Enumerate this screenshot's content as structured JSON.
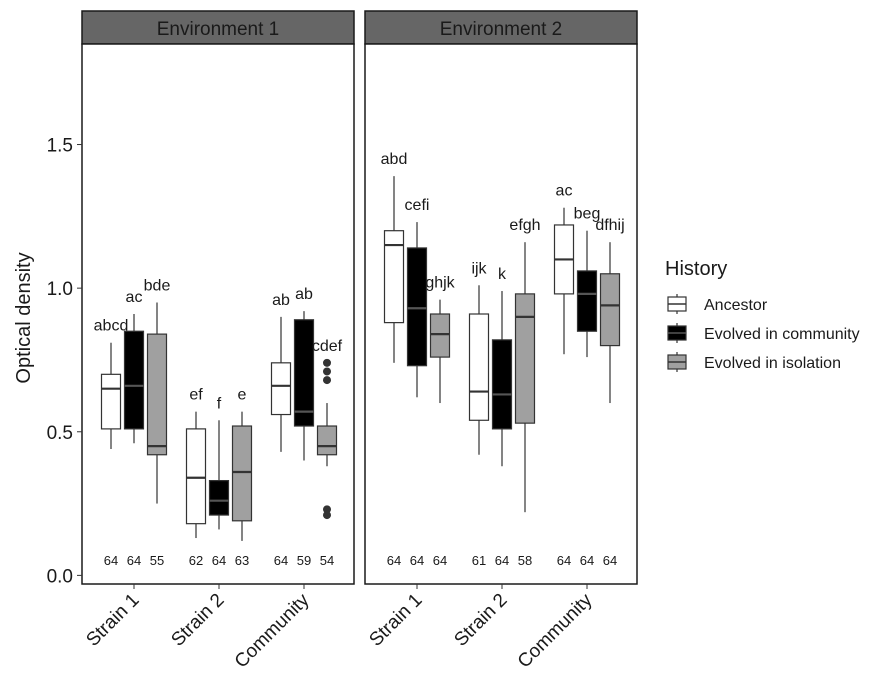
{
  "chart_data": {
    "type": "boxplot",
    "ylabel": "Optical density",
    "ylim": [
      -0.03,
      1.85
    ],
    "yticks": [
      0.0,
      0.5,
      1.0,
      1.5
    ],
    "ytick_labels": [
      "0.0",
      "0.5",
      "1.0",
      "1.5"
    ],
    "categories": [
      "Strain 1",
      "Strain 2",
      "Community"
    ],
    "legend": {
      "title": "History",
      "position": "right",
      "entries": [
        {
          "label": "Ancestor",
          "color": "#ffffff"
        },
        {
          "label": "Evolved in community",
          "color": "#000000"
        },
        {
          "label": "Evolved in isolation",
          "color": "#a0a0a0"
        }
      ]
    },
    "panels": [
      {
        "title": "Environment 1",
        "groups": [
          {
            "category": "Strain 1",
            "boxes": [
              {
                "series": "Ancestor",
                "lower": 0.44,
                "q1": 0.51,
                "median": 0.65,
                "q3": 0.7,
                "upper": 0.81,
                "outliers": [],
                "label": "abcd",
                "n": "64"
              },
              {
                "series": "Evolved in community",
                "lower": 0.46,
                "q1": 0.51,
                "median": 0.66,
                "q3": 0.85,
                "upper": 0.91,
                "outliers": [],
                "label": "ac",
                "n": "64"
              },
              {
                "series": "Evolved in isolation",
                "lower": 0.25,
                "q1": 0.42,
                "median": 0.45,
                "q3": 0.84,
                "upper": 0.95,
                "outliers": [],
                "label": "bde",
                "n": "55"
              }
            ]
          },
          {
            "category": "Strain 2",
            "boxes": [
              {
                "series": "Ancestor",
                "lower": 0.13,
                "q1": 0.18,
                "median": 0.34,
                "q3": 0.51,
                "upper": 0.57,
                "outliers": [],
                "label": "ef",
                "n": "62"
              },
              {
                "series": "Evolved in community",
                "lower": 0.16,
                "q1": 0.21,
                "median": 0.26,
                "q3": 0.33,
                "upper": 0.54,
                "outliers": [],
                "label": "f",
                "n": "64"
              },
              {
                "series": "Evolved in isolation",
                "lower": 0.12,
                "q1": 0.19,
                "median": 0.36,
                "q3": 0.52,
                "upper": 0.57,
                "outliers": [],
                "label": "e",
                "n": "63"
              }
            ]
          },
          {
            "category": "Community",
            "boxes": [
              {
                "series": "Ancestor",
                "lower": 0.43,
                "q1": 0.56,
                "median": 0.66,
                "q3": 0.74,
                "upper": 0.9,
                "outliers": [],
                "label": "ab",
                "n": "64"
              },
              {
                "series": "Evolved in community",
                "lower": 0.4,
                "q1": 0.52,
                "median": 0.57,
                "q3": 0.89,
                "upper": 0.92,
                "outliers": [],
                "label": "ab",
                "n": "59"
              },
              {
                "series": "Evolved in isolation",
                "lower": 0.38,
                "q1": 0.42,
                "median": 0.45,
                "q3": 0.52,
                "upper": 0.6,
                "outliers": [
                  0.68,
                  0.71,
                  0.74,
                  0.21,
                  0.23
                ],
                "label": "cdef",
                "n": "54"
              }
            ]
          }
        ]
      },
      {
        "title": "Environment 2",
        "groups": [
          {
            "category": "Strain 1",
            "boxes": [
              {
                "series": "Ancestor",
                "lower": 0.74,
                "q1": 0.88,
                "median": 1.15,
                "q3": 1.2,
                "upper": 1.39,
                "outliers": [],
                "label": "abd",
                "n": "64"
              },
              {
                "series": "Evolved in community",
                "lower": 0.62,
                "q1": 0.73,
                "median": 0.93,
                "q3": 1.14,
                "upper": 1.23,
                "outliers": [],
                "label": "cefi",
                "n": "64"
              },
              {
                "series": "Evolved in isolation",
                "lower": 0.6,
                "q1": 0.76,
                "median": 0.84,
                "q3": 0.91,
                "upper": 0.96,
                "outliers": [],
                "label": "ghjk",
                "n": "64"
              }
            ]
          },
          {
            "category": "Strain 2",
            "boxes": [
              {
                "series": "Ancestor",
                "lower": 0.42,
                "q1": 0.54,
                "median": 0.64,
                "q3": 0.91,
                "upper": 1.01,
                "outliers": [],
                "label": "ijk",
                "n": "61"
              },
              {
                "series": "Evolved in community",
                "lower": 0.38,
                "q1": 0.51,
                "median": 0.63,
                "q3": 0.82,
                "upper": 0.99,
                "outliers": [],
                "label": "k",
                "n": "64"
              },
              {
                "series": "Evolved in isolation",
                "lower": 0.22,
                "q1": 0.53,
                "median": 0.9,
                "q3": 0.98,
                "upper": 1.16,
                "outliers": [],
                "label": "efgh",
                "n": "58"
              }
            ]
          },
          {
            "category": "Community",
            "boxes": [
              {
                "series": "Ancestor",
                "lower": 0.77,
                "q1": 0.98,
                "median": 1.1,
                "q3": 1.22,
                "upper": 1.28,
                "outliers": [],
                "label": "ac",
                "n": "64"
              },
              {
                "series": "Evolved in community",
                "lower": 0.76,
                "q1": 0.85,
                "median": 0.98,
                "q3": 1.06,
                "upper": 1.2,
                "outliers": [],
                "label": "beg",
                "n": "64"
              },
              {
                "series": "Evolved in isolation",
                "lower": 0.6,
                "q1": 0.8,
                "median": 0.94,
                "q3": 1.05,
                "upper": 1.16,
                "outliers": [],
                "label": "dfhij",
                "n": "64"
              }
            ]
          }
        ]
      }
    ]
  }
}
